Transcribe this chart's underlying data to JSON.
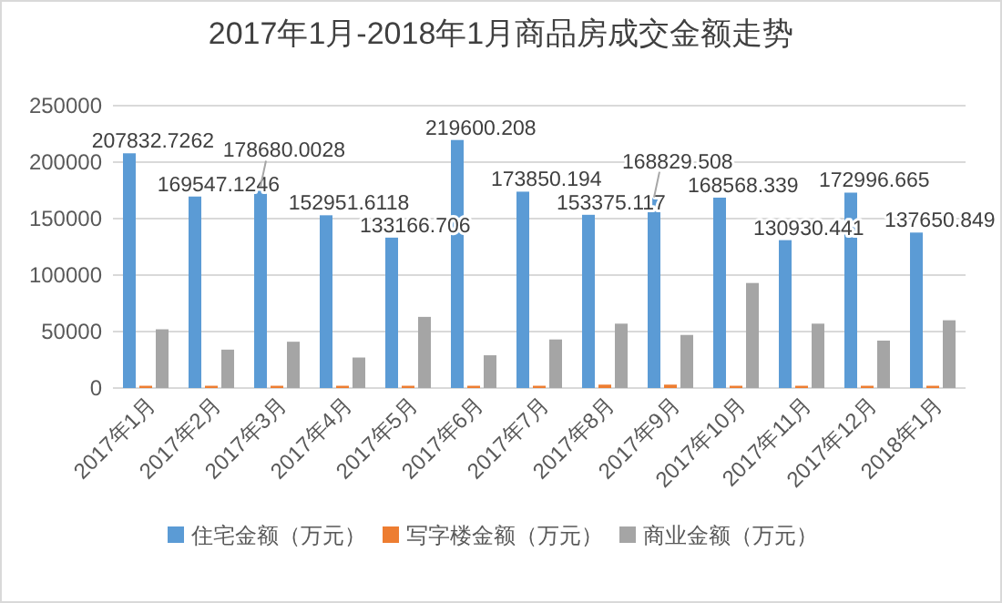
{
  "chart_data": {
    "type": "bar",
    "title": "2017年1月-2018年1月商品房成交金额走势",
    "categories": [
      "2017年1月",
      "2017年2月",
      "2017年3月",
      "2017年4月",
      "2017年5月",
      "2017年6月",
      "2017年7月",
      "2017年8月",
      "2017年9月",
      "2017年10月",
      "2017年11月",
      "2017年12月",
      "2018年1月"
    ],
    "series": [
      {
        "name": "住宅金额（万元）",
        "color": "#5b9bd5",
        "values": [
          207832.7262,
          169547.1246,
          178680.0028,
          152951.6118,
          133166.706,
          219600.208,
          173850.194,
          153375.117,
          168829.508,
          168568.339,
          130930.441,
          172996.665,
          137650.849
        ],
        "value_labels": [
          "207832.7262",
          "169547.1246",
          "178680.0028",
          "152951.6118",
          "133166.706",
          "219600.208",
          "173850.194",
          "153375.117",
          "168829.508",
          "168568.339",
          "130930.441",
          "172996.665",
          "137650.849"
        ]
      },
      {
        "name": "写字楼金额（万元）",
        "color": "#ed7d31",
        "values": [
          2000,
          2000,
          2000,
          2000,
          2000,
          2000,
          2000,
          3000,
          3000,
          2000,
          2000,
          2000,
          2000
        ]
      },
      {
        "name": "商业金额（万元）",
        "color": "#a5a5a5",
        "values": [
          52000,
          34000,
          41000,
          27000,
          63000,
          29000,
          43000,
          57000,
          47000,
          93000,
          57000,
          42000,
          60000
        ]
      }
    ],
    "ylim": [
      0,
      250000
    ],
    "yticks": [
      0,
      50000,
      100000,
      150000,
      200000,
      250000
    ],
    "grid": "y",
    "legend": "bottom"
  }
}
